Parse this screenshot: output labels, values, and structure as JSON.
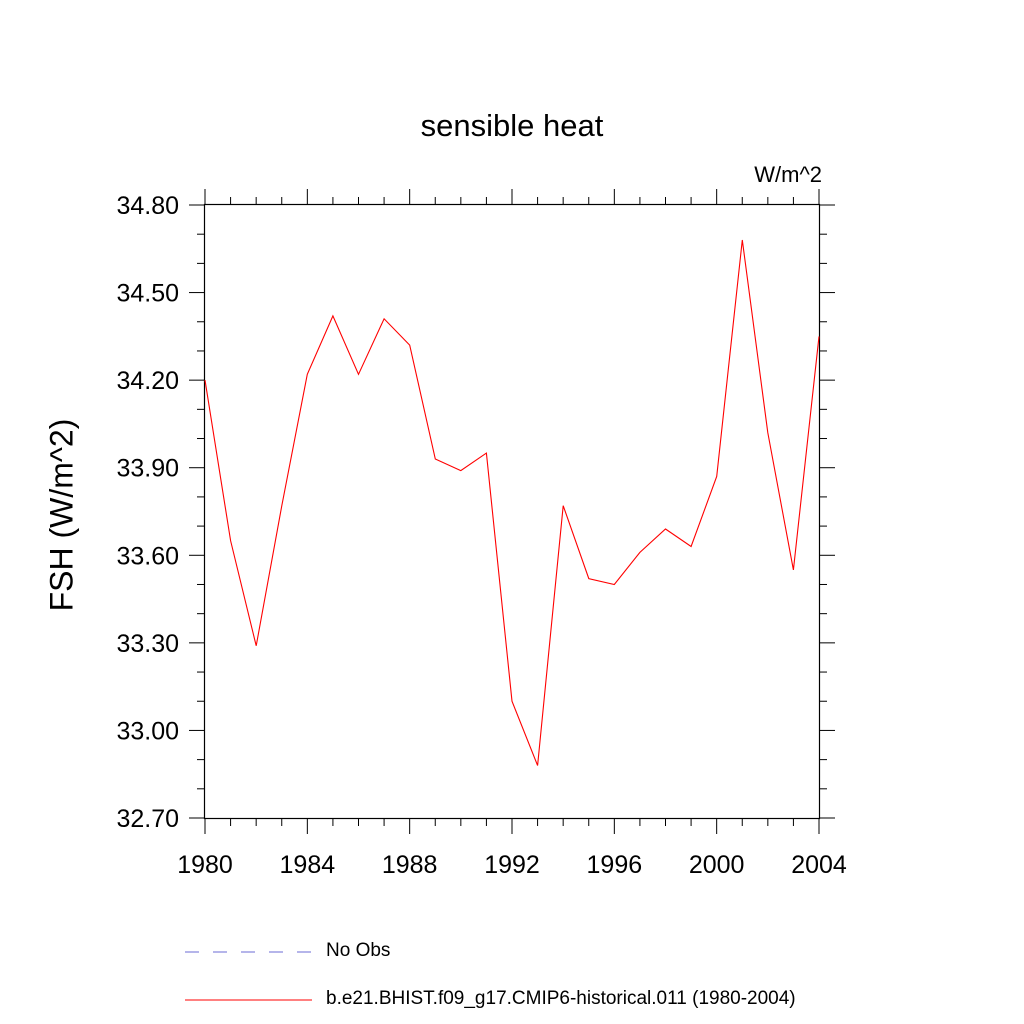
{
  "chart_data": {
    "type": "line",
    "title": "sensible heat",
    "units_label": "W/m^2",
    "ylabel": "FSH  (W/m^2)",
    "xlabel": "",
    "xlim": [
      1980,
      2004
    ],
    "ylim": [
      32.7,
      34.8
    ],
    "x_ticks": [
      "1980",
      "1984",
      "1988",
      "1992",
      "1996",
      "2000",
      "2004"
    ],
    "y_ticks": [
      "34.80",
      "34.50",
      "34.20",
      "33.90",
      "33.60",
      "33.30",
      "33.00",
      "32.70"
    ],
    "grid": false,
    "legend_position": "bottom",
    "series": [
      {
        "name": "No Obs",
        "color": "#6b6bd6",
        "style": "dashed",
        "x": [],
        "values": []
      },
      {
        "name": "b.e21.BHIST.f09_g17.CMIP6-historical.011 (1980-2004)",
        "color": "#ff0000",
        "style": "solid",
        "x": [
          1980,
          1981,
          1982,
          1983,
          1984,
          1985,
          1986,
          1987,
          1988,
          1989,
          1990,
          1991,
          1992,
          1993,
          1994,
          1995,
          1996,
          1997,
          1998,
          1999,
          2000,
          2001,
          2002,
          2003,
          2004
        ],
        "values": [
          34.2,
          33.65,
          33.29,
          33.77,
          34.22,
          34.42,
          34.22,
          34.41,
          34.32,
          33.93,
          33.89,
          33.95,
          33.1,
          32.88,
          33.77,
          33.52,
          33.5,
          33.61,
          33.69,
          33.63,
          33.87,
          34.68,
          34.02,
          33.55,
          34.35
        ]
      }
    ]
  }
}
